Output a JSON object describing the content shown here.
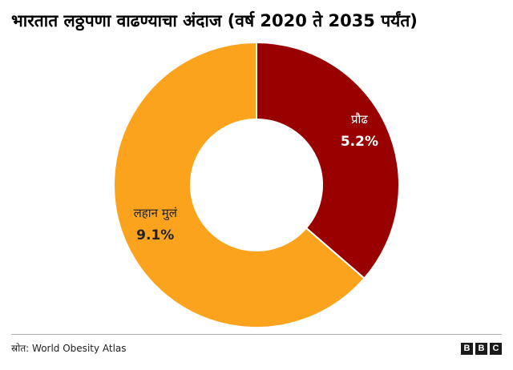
{
  "title": "भारतात लठ्ठपणा वाढण्याचा अंदाज (वर्ष 2020 ते 2035 पर्यंत)",
  "source": "स्रोत: World Obesity Atlas",
  "logo": [
    "B",
    "B",
    "C"
  ],
  "chart_data": {
    "type": "pie",
    "donut": true,
    "title": "भारतात लठ्ठपणा वाढण्याचा अंदाज (वर्ष 2020 ते 2035 पर्यंत)",
    "slices": [
      {
        "label": "प्रौढ",
        "value": 5.2,
        "value_label": "5.2%",
        "color": "#990000"
      },
      {
        "label": "लहान मुलं",
        "value": 9.1,
        "value_label": "9.1%",
        "color": "#fca31d"
      }
    ]
  }
}
